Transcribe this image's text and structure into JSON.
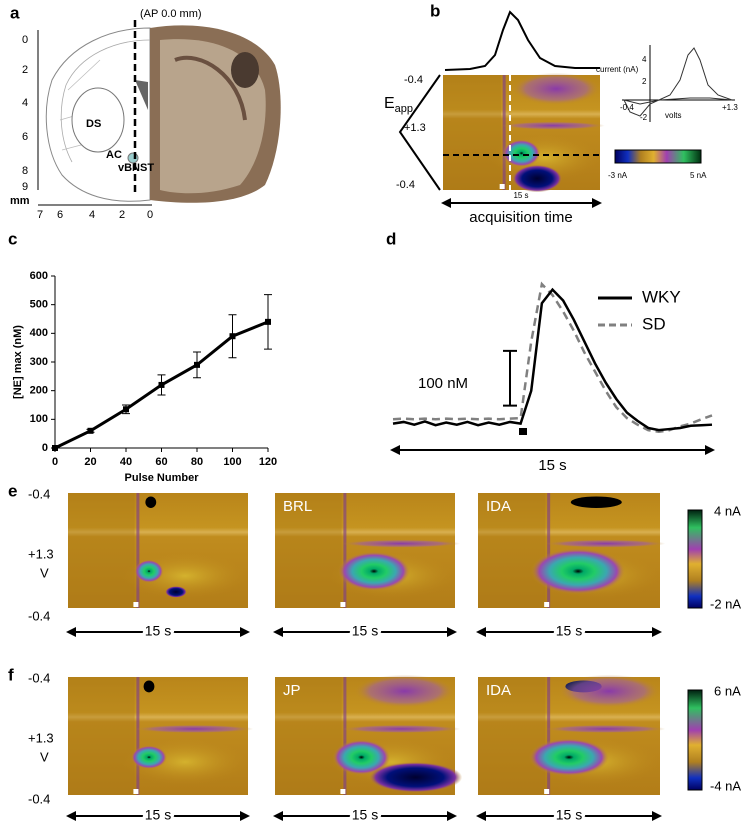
{
  "panel_a": {
    "panel_label": "a",
    "annotation": "(AP 0.0 mm)",
    "regions": [
      "DS",
      "AC",
      "vBNST"
    ],
    "y_scale": [
      0,
      2,
      4,
      6,
      8,
      9
    ],
    "x_scale": [
      7,
      6,
      4,
      2,
      0
    ],
    "unit": "mm"
  },
  "panel_b": {
    "panel_label": "b",
    "waveform_label": "E",
    "waveform_subscript": "app",
    "potentials": [
      "-0.4",
      "+1.3",
      "-0.4"
    ],
    "time_label": "15 s",
    "xlabel": "acquisition time",
    "colorbar": [
      "-3 nA",
      "5 nA"
    ],
    "inset_ylabel": "current (nA)",
    "inset_xlabel": "volts",
    "inset_yticks": [
      "4",
      "2",
      "-2"
    ],
    "inset_xticks": [
      "-0.4",
      "+1.3"
    ]
  },
  "chart_data": [
    {
      "type": "errorbar",
      "panel_label": "c",
      "xlabel": "Pulse Number",
      "ylabel": "[NE] max (nM)",
      "color": "#000000",
      "x": [
        0,
        20,
        40,
        60,
        80,
        100,
        120
      ],
      "values": [
        0,
        60,
        135,
        220,
        290,
        390,
        440
      ],
      "errors": [
        0,
        5,
        15,
        35,
        45,
        75,
        95
      ],
      "xlim": [
        0,
        120
      ],
      "ylim": [
        0,
        600
      ],
      "xticks": [
        0,
        20,
        40,
        60,
        80,
        100,
        120
      ],
      "yticks": [
        0,
        100,
        200,
        300,
        400,
        500,
        600
      ]
    },
    {
      "type": "line",
      "panel_label": "d",
      "xlabel": "15 s",
      "scale_bar": 100,
      "scale_bar_label": "100 nM",
      "x": [
        0,
        0.5,
        1,
        1.5,
        2,
        2.5,
        3,
        3.5,
        4,
        4.5,
        5,
        5.5,
        6,
        6.5,
        7,
        7.5,
        8,
        8.5,
        9,
        9.5,
        10,
        10.5,
        11,
        11.5,
        12,
        12.5,
        13,
        13.5,
        14,
        14.5,
        15
      ],
      "xlim": [
        0,
        15
      ],
      "ylim": [
        -30,
        290
      ],
      "series": [
        {
          "name": "WKY",
          "color": "#000000",
          "style": "solid",
          "values": [
            0,
            3,
            -2,
            4,
            -3,
            2,
            -2,
            3,
            -3,
            2,
            -2,
            3,
            0,
            60,
            220,
            245,
            225,
            190,
            150,
            110,
            75,
            45,
            20,
            5,
            -8,
            -12,
            -10,
            -8,
            -4,
            -3,
            -2
          ]
        },
        {
          "name": "SD",
          "color": "#808080",
          "style": "dashed",
          "values": [
            8,
            9,
            8,
            9,
            8,
            9,
            8,
            9,
            8,
            9,
            8,
            9,
            10,
            150,
            255,
            235,
            205,
            170,
            130,
            95,
            60,
            30,
            10,
            -2,
            -12,
            -15,
            -12,
            -5,
            0,
            8,
            15
          ]
        }
      ]
    }
  ],
  "panel_e": {
    "panel_label": "e",
    "potentials": [
      "-0.4",
      "+1.3",
      "V",
      "-0.4"
    ],
    "time_labels": [
      "15 s",
      "15 s",
      "15 s"
    ],
    "conditions": [
      "BRL",
      "IDA"
    ],
    "colorbar": [
      "4 nA",
      "-2 nA"
    ]
  },
  "panel_f": {
    "panel_label": "f",
    "potentials": [
      "-0.4",
      "+1.3",
      "V",
      "-0.4"
    ],
    "time_labels": [
      "15 s",
      "15 s",
      "15 s"
    ],
    "conditions": [
      "JP",
      "IDA"
    ],
    "colorbar": [
      "6 nA",
      "-4 nA"
    ]
  }
}
